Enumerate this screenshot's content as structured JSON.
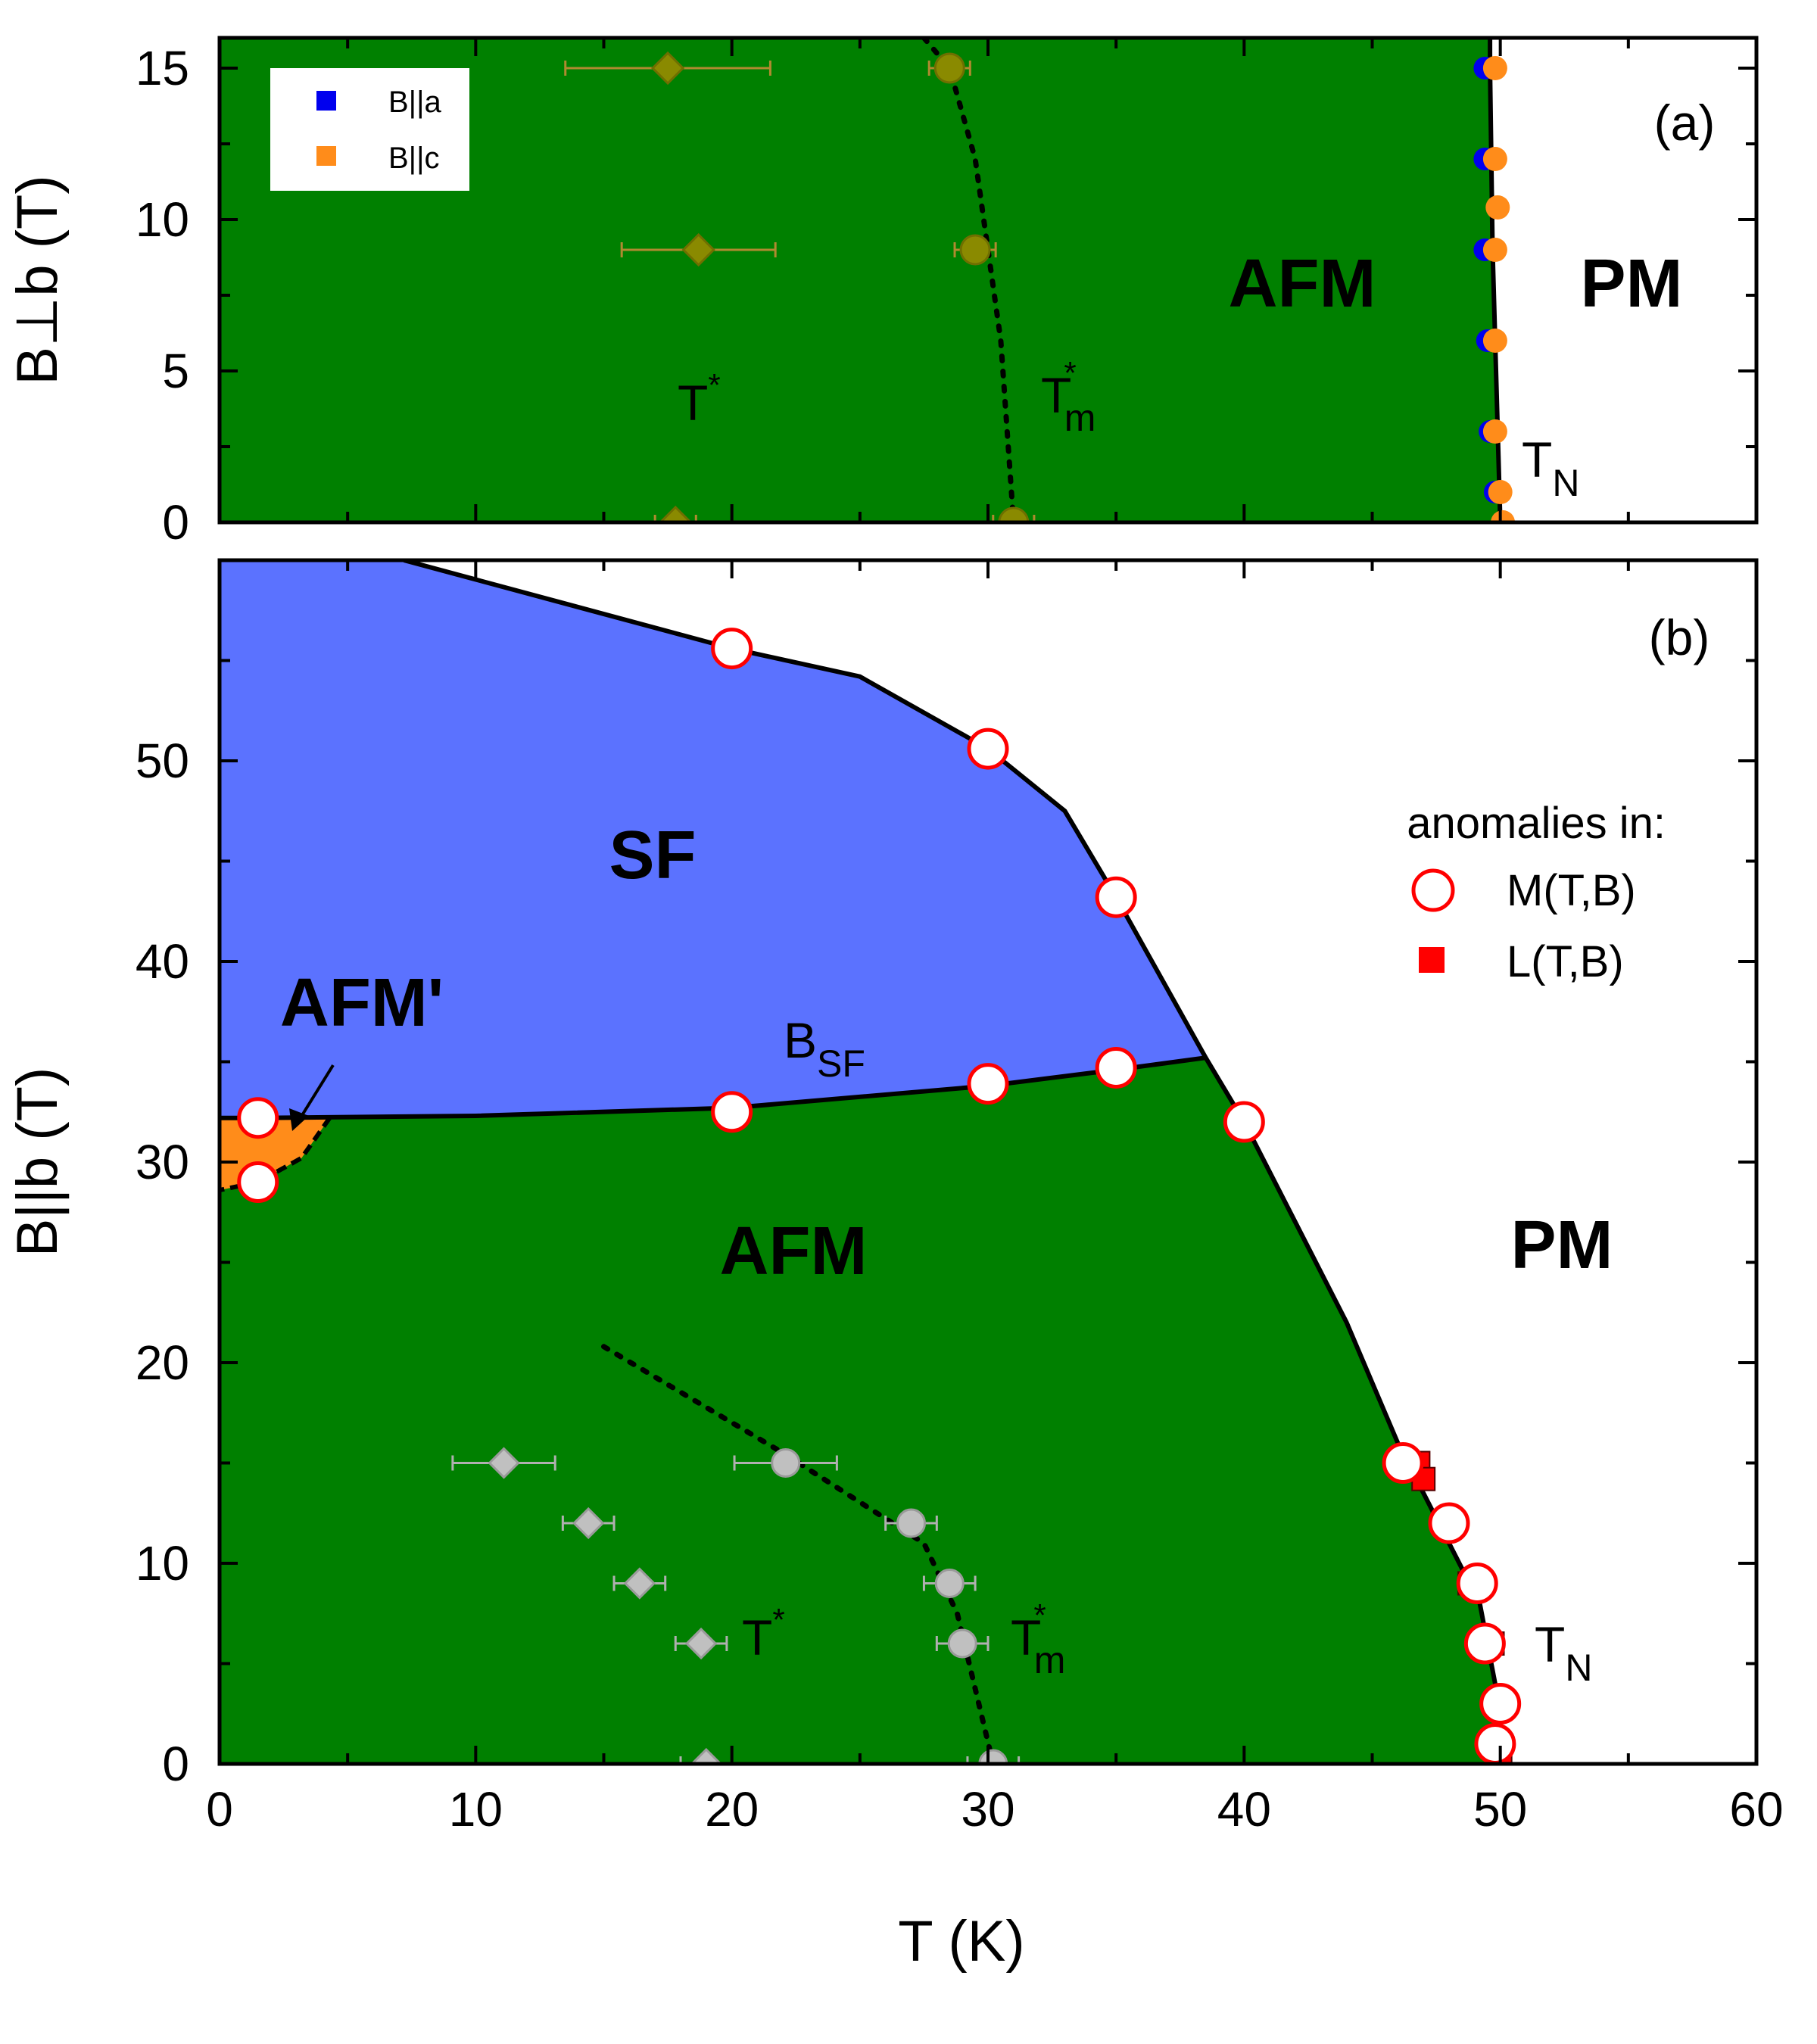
{
  "colors": {
    "afm": "#008000",
    "sf": "#5b72ff",
    "afm_prime": "#ff8c1a",
    "ba_marker": "#0000ee",
    "bc_marker": "#ff8c1a",
    "olive": "#8a8a00",
    "gray": "#c0c0c0",
    "red": "#ff0000"
  },
  "chart_data": [
    {
      "id": "a",
      "panel_label": "(a)",
      "type": "scatter",
      "ylabel": "B⊥b (T)",
      "xlim": [
        0,
        60
      ],
      "ylim": [
        0,
        16
      ],
      "yticks": [
        0,
        5,
        10,
        15
      ],
      "regions": [
        "AFM",
        "PM"
      ],
      "legend": [
        {
          "label": "B||a",
          "color": "#0000ee"
        },
        {
          "label": "B||c",
          "color": "#ff8c1a"
        }
      ],
      "annotations": {
        "t_star": "T",
        "t_star_sup": "*",
        "t_m": "T",
        "t_m_sup": "*",
        "t_m_sub": "m",
        "t_n": "T",
        "t_n_sub": "N"
      },
      "tn_boundary": [
        [
          49.6,
          15
        ],
        [
          49.7,
          9
        ],
        [
          49.9,
          3
        ],
        [
          50.0,
          0
        ]
      ],
      "tm_line": [
        [
          27.5,
          16
        ],
        [
          28.5,
          15
        ],
        [
          29.5,
          12
        ],
        [
          30.5,
          6
        ],
        [
          31.0,
          0
        ]
      ],
      "t_star_points": [
        {
          "x": 17.5,
          "y": 15,
          "xerr": 4.0
        },
        {
          "x": 18.7,
          "y": 9,
          "xerr": 3.0
        },
        {
          "x": 17.8,
          "y": 0,
          "xerr": 0.8
        }
      ],
      "tm_points": [
        {
          "x": 28.5,
          "y": 15,
          "xerr": 0.8
        },
        {
          "x": 29.5,
          "y": 9,
          "xerr": 0.8
        },
        {
          "x": 31.0,
          "y": 0,
          "xerr": 0.8
        }
      ],
      "tn_points_a": [
        {
          "x": 49.4,
          "y": 15
        },
        {
          "x": 49.4,
          "y": 12
        },
        {
          "x": 49.4,
          "y": 9
        },
        {
          "x": 49.5,
          "y": 6
        },
        {
          "x": 49.6,
          "y": 3
        },
        {
          "x": 49.8,
          "y": 1
        }
      ],
      "tn_points_c": [
        {
          "x": 49.8,
          "y": 15
        },
        {
          "x": 49.8,
          "y": 12
        },
        {
          "x": 49.9,
          "y": 10.4
        },
        {
          "x": 49.8,
          "y": 9
        },
        {
          "x": 49.8,
          "y": 6
        },
        {
          "x": 49.8,
          "y": 3
        },
        {
          "x": 50.0,
          "y": 1
        },
        {
          "x": 50.1,
          "y": 0
        }
      ]
    },
    {
      "id": "b",
      "panel_label": "(b)",
      "type": "scatter",
      "xlabel": "T (K)",
      "ylabel": "B||b (T)",
      "xlim": [
        0,
        60
      ],
      "ylim": [
        0,
        60
      ],
      "xticks": [
        0,
        10,
        20,
        30,
        40,
        50,
        60
      ],
      "yticks": [
        0,
        10,
        20,
        30,
        40,
        50
      ],
      "regions": [
        "SF",
        "AFM'",
        "AFM",
        "PM"
      ],
      "legend_title": "anomalies in:",
      "legend": [
        {
          "label": "M(T,B)",
          "marker": "open-circle"
        },
        {
          "label": "L(T,B)",
          "marker": "filled-square"
        }
      ],
      "annotations": {
        "b_sf": "B",
        "b_sf_sub": "SF",
        "t_star": "T",
        "t_star_sup": "*",
        "t_m": "T",
        "t_m_sup": "*",
        "t_m_sub": "m",
        "t_n": "T",
        "t_n_sub": "N"
      },
      "upper_boundary": [
        [
          7.2,
          60
        ],
        [
          20,
          55.6
        ],
        [
          25,
          54.2
        ],
        [
          30,
          50.6
        ],
        [
          33,
          47.5
        ],
        [
          35,
          43.2
        ],
        [
          38.5,
          35.2
        ],
        [
          40,
          32
        ],
        [
          44,
          22
        ],
        [
          46,
          16
        ],
        [
          48,
          11
        ],
        [
          49.2,
          8
        ],
        [
          49.8,
          4
        ],
        [
          50.1,
          0
        ]
      ],
      "sf_lower_boundary": [
        [
          0,
          32.2
        ],
        [
          1.5,
          32.2
        ],
        [
          10,
          32.3
        ],
        [
          20,
          32.7
        ],
        [
          30,
          33.8
        ],
        [
          35,
          34.6
        ],
        [
          38.5,
          35.2
        ]
      ],
      "afm_prime_pocket": [
        [
          0,
          32.2
        ],
        [
          4.3,
          32.2
        ],
        [
          3.2,
          30.2
        ],
        [
          1.5,
          29
        ],
        [
          0,
          28.6
        ]
      ],
      "tm_line": [
        [
          15,
          20.8
        ],
        [
          22,
          15.5
        ],
        [
          27.5,
          11
        ],
        [
          28.8,
          7.5
        ],
        [
          30.2,
          0
        ]
      ],
      "m_points": [
        {
          "x": 20.0,
          "y": 55.6
        },
        {
          "x": 30.0,
          "y": 50.6
        },
        {
          "x": 35.0,
          "y": 43.2
        },
        {
          "x": 1.5,
          "y": 32.2
        },
        {
          "x": 1.5,
          "y": 29.0
        },
        {
          "x": 20.0,
          "y": 32.5
        },
        {
          "x": 30.0,
          "y": 33.9
        },
        {
          "x": 35.0,
          "y": 34.7
        },
        {
          "x": 40.0,
          "y": 32.0
        },
        {
          "x": 46.2,
          "y": 15
        },
        {
          "x": 48.0,
          "y": 12
        },
        {
          "x": 49.1,
          "y": 9
        },
        {
          "x": 49.4,
          "y": 6
        },
        {
          "x": 50.0,
          "y": 3
        },
        {
          "x": 49.8,
          "y": 1
        }
      ],
      "l_points": [
        {
          "x": 46.8,
          "y": 15
        },
        {
          "x": 47.0,
          "y": 14.2
        },
        {
          "x": 47.8,
          "y": 12
        },
        {
          "x": 48.8,
          "y": 9
        },
        {
          "x": 49.7,
          "y": 6
        },
        {
          "x": 50.0,
          "y": 3
        },
        {
          "x": 50.0,
          "y": 0
        }
      ],
      "t_star_points": [
        {
          "x": 11.1,
          "y": 15,
          "xerr": 2.0
        },
        {
          "x": 14.4,
          "y": 12,
          "xerr": 1.0
        },
        {
          "x": 16.4,
          "y": 9,
          "xerr": 1.0
        },
        {
          "x": 18.8,
          "y": 6,
          "xerr": 1.0
        },
        {
          "x": 19.0,
          "y": 0,
          "xerr": 1.0
        }
      ],
      "tm_points": [
        {
          "x": 22.1,
          "y": 15,
          "xerr": 2.0
        },
        {
          "x": 27.0,
          "y": 12,
          "xerr": 1.0
        },
        {
          "x": 28.5,
          "y": 9,
          "xerr": 1.0
        },
        {
          "x": 29.0,
          "y": 6,
          "xerr": 1.0
        },
        {
          "x": 30.2,
          "y": 0,
          "xerr": 1.0
        }
      ]
    }
  ]
}
